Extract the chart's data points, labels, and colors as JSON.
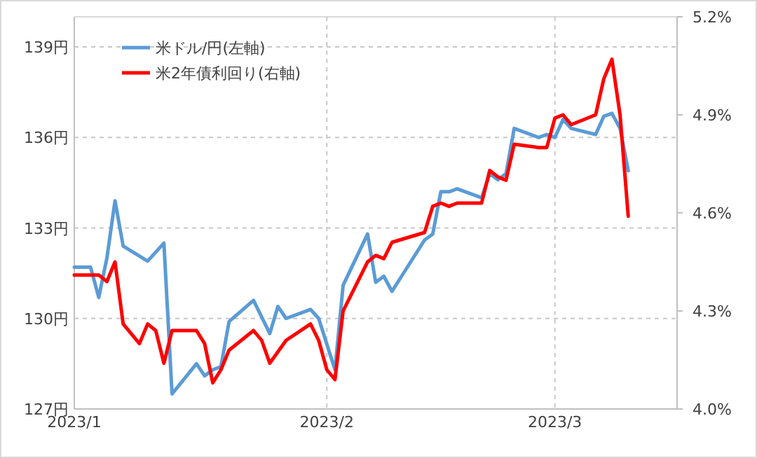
{
  "chart_data": {
    "type": "line",
    "legend": "top left",
    "grid": true,
    "xlim": [
      "2023-01-01",
      "2023-03-16"
    ],
    "xticks": [
      {
        "value": "2023-01-01",
        "label": "2023/1"
      },
      {
        "value": "2023-02-01",
        "label": "2023/2"
      },
      {
        "value": "2023-03-01",
        "label": "2023/3"
      }
    ],
    "ylim": [
      127,
      140
    ],
    "yticks": [
      {
        "value": 127,
        "label": "127円"
      },
      {
        "value": 130,
        "label": "130円"
      },
      {
        "value": 133,
        "label": "133円"
      },
      {
        "value": 136,
        "label": "136円"
      },
      {
        "value": 139,
        "label": "139円"
      }
    ],
    "y2lim": [
      4.0,
      5.2
    ],
    "y2ticks": [
      {
        "value": 4.0,
        "label": "4.0%"
      },
      {
        "value": 4.3,
        "label": "4.3%"
      },
      {
        "value": 4.6,
        "label": "4.6%"
      },
      {
        "value": 4.9,
        "label": "4.9%"
      },
      {
        "value": 5.2,
        "label": "5.2%"
      }
    ],
    "series": [
      {
        "name": "米ドル/円(左軸)",
        "color": "#5b9bd5",
        "axis": "y",
        "x": [
          "2023-01-01",
          "2023-01-03",
          "2023-01-04",
          "2023-01-05",
          "2023-01-06",
          "2023-01-07",
          "2023-01-10",
          "2023-01-12",
          "2023-01-13",
          "2023-01-16",
          "2023-01-17",
          "2023-01-18",
          "2023-01-19",
          "2023-01-20",
          "2023-01-23",
          "2023-01-25",
          "2023-01-26",
          "2023-01-27",
          "2023-01-30",
          "2023-01-31",
          "2023-02-02",
          "2023-02-03",
          "2023-02-06",
          "2023-02-07",
          "2023-02-08",
          "2023-02-09",
          "2023-02-13",
          "2023-02-14",
          "2023-02-15",
          "2023-02-16",
          "2023-02-17",
          "2023-02-20",
          "2023-02-21",
          "2023-02-22",
          "2023-02-23",
          "2023-02-24",
          "2023-02-27",
          "2023-02-28",
          "2023-03-01",
          "2023-03-02",
          "2023-03-03",
          "2023-03-06",
          "2023-03-07",
          "2023-03-08",
          "2023-03-09",
          "2023-03-10"
        ],
        "values": [
          131.7,
          131.7,
          130.7,
          132.0,
          133.9,
          132.4,
          131.9,
          132.5,
          127.5,
          128.5,
          128.1,
          128.3,
          128.4,
          129.9,
          130.6,
          129.5,
          130.4,
          130.0,
          130.3,
          130.0,
          128.3,
          131.1,
          132.8,
          131.2,
          131.4,
          130.9,
          132.6,
          132.8,
          134.2,
          134.2,
          134.3,
          134.0,
          134.8,
          134.6,
          134.8,
          136.3,
          136.0,
          136.1,
          136.0,
          136.6,
          136.3,
          136.1,
          136.7,
          136.8,
          136.3,
          134.9
        ]
      },
      {
        "name": "米2年債利回り(右軸)",
        "color": "#ff0000",
        "axis": "y2",
        "x": [
          "2023-01-01",
          "2023-01-04",
          "2023-01-05",
          "2023-01-06",
          "2023-01-07",
          "2023-01-09",
          "2023-01-10",
          "2023-01-11",
          "2023-01-12",
          "2023-01-13",
          "2023-01-16",
          "2023-01-17",
          "2023-01-18",
          "2023-01-19",
          "2023-01-20",
          "2023-01-23",
          "2023-01-24",
          "2023-01-25",
          "2023-01-27",
          "2023-01-30",
          "2023-01-31",
          "2023-02-01",
          "2023-02-02",
          "2023-02-03",
          "2023-02-05",
          "2023-02-06",
          "2023-02-07",
          "2023-02-08",
          "2023-02-09",
          "2023-02-13",
          "2023-02-14",
          "2023-02-15",
          "2023-02-16",
          "2023-02-17",
          "2023-02-20",
          "2023-02-21",
          "2023-02-22",
          "2023-02-23",
          "2023-02-24",
          "2023-02-27",
          "2023-02-28",
          "2023-03-01",
          "2023-03-02",
          "2023-03-03",
          "2023-03-06",
          "2023-03-07",
          "2023-03-08",
          "2023-03-09",
          "2023-03-10"
        ],
        "values": [
          4.41,
          4.41,
          4.39,
          4.45,
          4.26,
          4.2,
          4.26,
          4.24,
          4.14,
          4.24,
          4.24,
          4.2,
          4.08,
          4.12,
          4.18,
          4.24,
          4.21,
          4.14,
          4.21,
          4.26,
          4.21,
          4.12,
          4.09,
          4.3,
          4.4,
          4.45,
          4.47,
          4.46,
          4.51,
          4.54,
          4.62,
          4.63,
          4.62,
          4.63,
          4.63,
          4.73,
          4.71,
          4.7,
          4.81,
          4.8,
          4.8,
          4.89,
          4.9,
          4.87,
          4.9,
          5.01,
          5.07,
          4.9,
          4.59
        ]
      }
    ]
  }
}
